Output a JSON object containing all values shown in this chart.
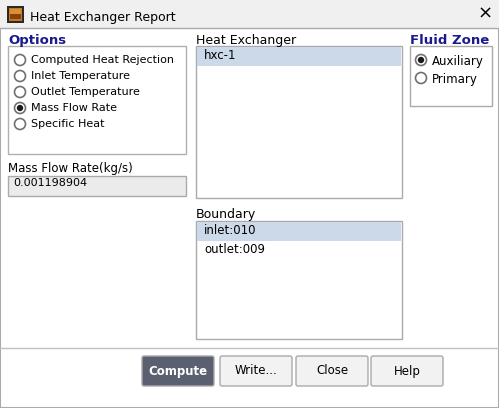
{
  "title": "Heat Exchanger Report",
  "bg_color": "#f0f0f0",
  "dialog_bg": "#ffffff",
  "options_label": "Options",
  "options_items": [
    "Computed Heat Rejection",
    "Inlet Temperature",
    "Outlet Temperature",
    "Mass Flow Rate",
    "Specific Heat"
  ],
  "options_selected": 3,
  "heat_exchanger_label": "Heat Exchanger",
  "heat_exchanger_items": [
    "hxc-1"
  ],
  "fluid_zone_label": "Fluid Zone",
  "fluid_zone_items": [
    "Auxiliary",
    "Primary"
  ],
  "fluid_zone_selected": 0,
  "mass_flow_label": "Mass Flow Rate(kg/s)",
  "mass_flow_value": "0.001198904",
  "boundary_label": "Boundary",
  "boundary_items": [
    "inlet:010",
    "outlet:009"
  ],
  "boundary_selected": 0,
  "buttons": [
    "Compute",
    "Write...",
    "Close",
    "Help"
  ],
  "button_selected": 0,
  "listbox_selected_bg": "#ccd9e8",
  "input_bg": "#ebebeb",
  "border_color": "#aaaaaa",
  "options_border_color": "#b0b0b0",
  "text_color": "#000000",
  "options_label_color": "#1a1a8e",
  "fluid_zone_label_color": "#1a1a8e",
  "radio_border": "#707070",
  "radio_fill": "#1a1a1a",
  "button_dark_bg": "#5a6070",
  "button_dark_text": "#ffffff",
  "button_light_bg": "#f2f2f2",
  "button_light_text": "#000000",
  "separator_color": "#c0c0c0",
  "icon_outer": "#2a2a2a",
  "icon_inner": "#c87820",
  "close_color": "#000000"
}
